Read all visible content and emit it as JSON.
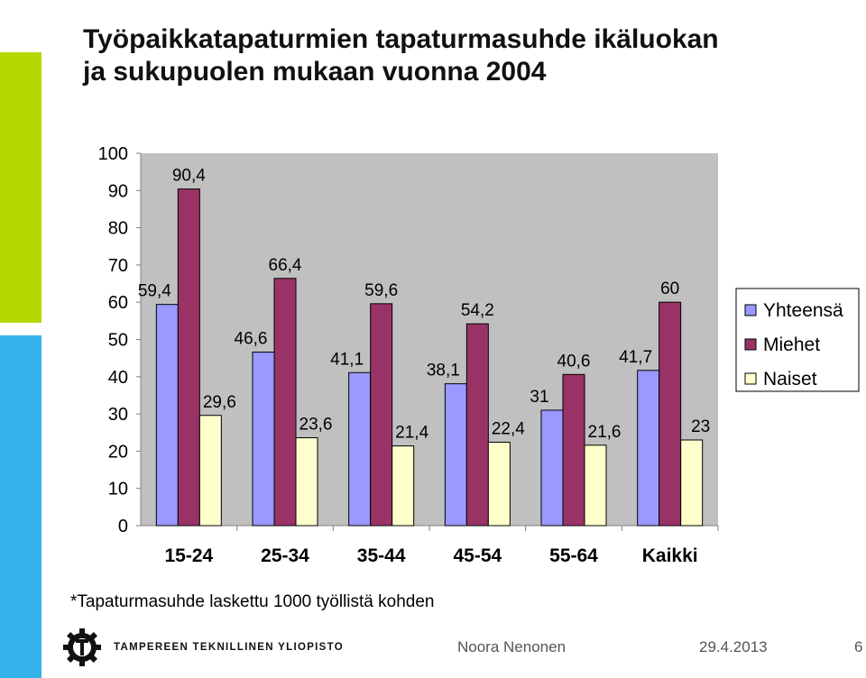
{
  "slide": {
    "title_line1": "Työpaikkatapaturmien tapaturmasuhde ikäluokan",
    "title_line2": "ja sukupuolen mukaan vuonna 2004",
    "footnote": "*Tapaturmasuhde laskettu 1000 työllistä kohden",
    "logo_text": "TAMPEREEN TEKNILLINEN YLIOPISTO",
    "author": "Noora Nenonen",
    "date": "29.4.2013",
    "page": "6"
  },
  "colors": {
    "accent_green": "#b5d800",
    "accent_blue": "#33b3ea",
    "plot_background": "#c0c0c0"
  },
  "chart_data": {
    "type": "bar",
    "categories": [
      "15-24",
      "25-34",
      "35-44",
      "45-54",
      "55-64",
      "Kaikki"
    ],
    "series": [
      {
        "name": "Yhteensä",
        "color": "#9999ff",
        "values": [
          59.4,
          46.6,
          41.1,
          38.1,
          31,
          41.7
        ],
        "labels": [
          "59,4",
          "46,6",
          "41,1",
          "38,1",
          "31",
          "41,7"
        ]
      },
      {
        "name": "Miehet",
        "color": "#993366",
        "values": [
          90.4,
          66.4,
          59.6,
          54.2,
          40.6,
          60
        ],
        "labels": [
          "90,4",
          "66,4",
          "59,6",
          "54,2",
          "40,6",
          "60"
        ]
      },
      {
        "name": "Naiset",
        "color": "#ffffcc",
        "values": [
          29.6,
          23.6,
          21.4,
          22.4,
          21.6,
          23
        ],
        "labels": [
          "29,6",
          "23,6",
          "21,4",
          "22,4",
          "21,6",
          "23"
        ]
      }
    ],
    "ylim": [
      0,
      100
    ],
    "yticks": [
      0,
      10,
      20,
      30,
      40,
      50,
      60,
      70,
      80,
      90,
      100
    ],
    "grid": false,
    "legend": "right"
  }
}
